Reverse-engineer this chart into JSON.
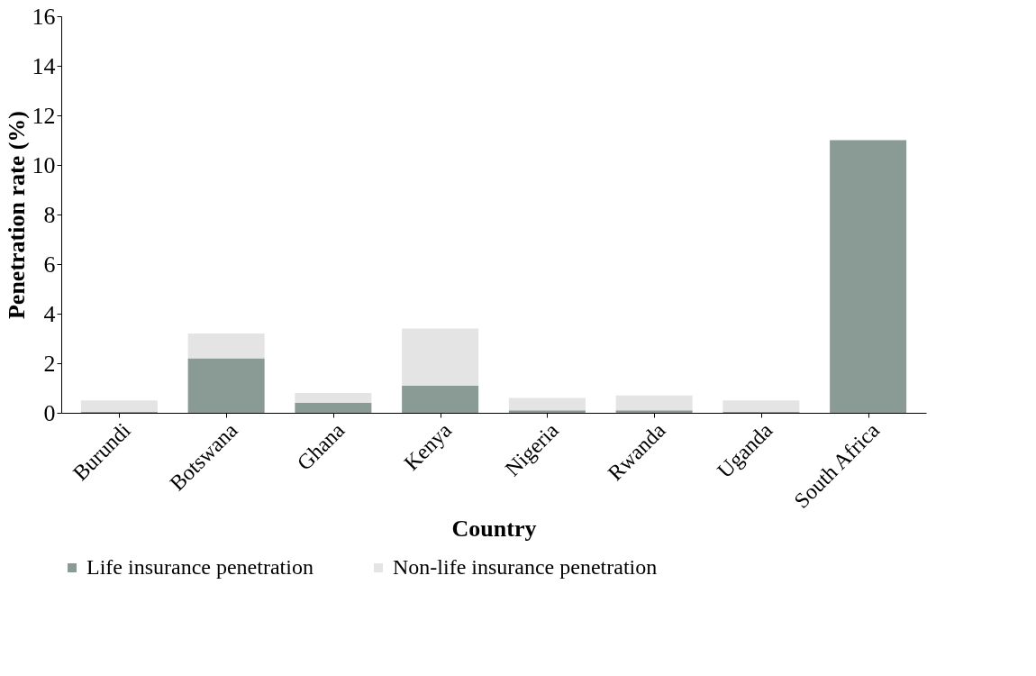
{
  "chart_data": {
    "type": "bar",
    "stacked": true,
    "xlabel": "Country",
    "ylabel": "Penetration rate (%)",
    "categories": [
      "Burundi",
      "Botswana",
      "Ghana",
      "Kenya",
      "Nigeria",
      "Rwanda",
      "Uganda",
      "South Africa"
    ],
    "series": [
      {
        "name": "Life insurance penetration",
        "color": "#8a9a94",
        "values": [
          0.05,
          2.2,
          0.4,
          1.1,
          0.1,
          0.1,
          0.05,
          11.0
        ]
      },
      {
        "name": "Non-life insurance penetration",
        "color": "#e4e4e4",
        "values": [
          0.45,
          1.0,
          0.4,
          2.3,
          0.5,
          0.6,
          0.45,
          0
        ]
      }
    ],
    "ylim": [
      0,
      16
    ],
    "yticks": [
      0,
      2,
      4,
      6,
      8,
      10,
      12,
      14,
      16
    ],
    "grid": false,
    "legend": "bottom"
  }
}
